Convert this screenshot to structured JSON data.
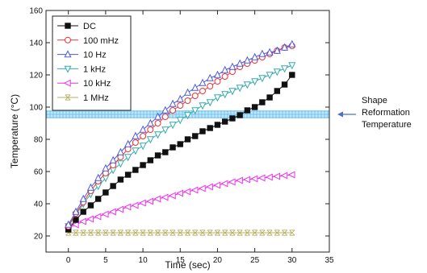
{
  "chart_data": {
    "type": "line",
    "xlabel": "Time (sec)",
    "ylabel": "Temperature (°C)",
    "xlim": [
      -3,
      35
    ],
    "ylim": [
      10,
      160
    ],
    "xticks": [
      0,
      5,
      10,
      15,
      20,
      25,
      30,
      35
    ],
    "yticks": [
      20,
      40,
      60,
      80,
      100,
      120,
      140,
      160
    ],
    "x": [
      0,
      1,
      2,
      3,
      4,
      5,
      6,
      7,
      8,
      9,
      10,
      11,
      12,
      13,
      14,
      15,
      16,
      17,
      18,
      19,
      20,
      21,
      22,
      23,
      24,
      25,
      26,
      27,
      28,
      29,
      30
    ],
    "legend_position": "top-left",
    "grid": false,
    "series": [
      {
        "name": "DC",
        "marker": "square-filled",
        "color": "#111111",
        "values": [
          24,
          30,
          35,
          39,
          43,
          47,
          51,
          55,
          58,
          61,
          64,
          67,
          70,
          72,
          75,
          77,
          80,
          82,
          85,
          87,
          89,
          91,
          93,
          95,
          98,
          100,
          103,
          106,
          110,
          114,
          120
        ]
      },
      {
        "name": "100 mHz",
        "marker": "circle-open",
        "color": "#ee3333",
        "values": [
          26,
          34,
          41,
          48,
          54,
          59,
          64,
          69,
          74,
          78,
          82,
          86,
          90,
          94,
          98,
          101,
          104,
          107,
          110,
          113,
          116,
          119,
          122,
          125,
          127,
          129,
          131,
          133,
          135,
          137,
          138
        ]
      },
      {
        "name": "10 Hz",
        "marker": "triangle-up-open",
        "color": "#4a5ae0",
        "values": [
          27,
          35,
          43,
          50,
          56,
          62,
          67,
          72,
          77,
          82,
          86,
          90,
          94,
          98,
          102,
          105,
          109,
          112,
          115,
          118,
          120,
          123,
          125,
          127,
          129,
          131,
          133,
          134,
          135,
          137,
          139
        ]
      },
      {
        "name": "1 kHz",
        "marker": "triangle-down-open",
        "color": "#33aaaa",
        "values": [
          26,
          33,
          40,
          46,
          51,
          56,
          61,
          65,
          69,
          73,
          76,
          80,
          83,
          86,
          89,
          92,
          95,
          98,
          101,
          103,
          106,
          108,
          110,
          112,
          114,
          116,
          118,
          120,
          122,
          124,
          126
        ]
      },
      {
        "name": "10 kHz",
        "marker": "triangle-left-open",
        "color": "#ee33ee",
        "values": [
          25,
          27,
          29,
          30.5,
          32,
          33.5,
          35,
          36.5,
          38,
          39,
          40.5,
          41.5,
          43,
          44,
          45,
          46.5,
          47.5,
          48.5,
          49.5,
          50.5,
          51.5,
          52.5,
          53.5,
          54.5,
          55,
          55.5,
          56,
          56.5,
          57,
          57.5,
          58
        ]
      },
      {
        "name": "1 MHz",
        "marker": "x-open",
        "color": "#b5b060",
        "values": [
          22,
          22,
          22,
          22,
          22,
          22,
          22,
          22,
          22,
          22,
          22,
          22,
          22,
          22,
          22,
          22,
          22,
          22,
          22,
          22,
          22,
          22,
          22,
          22,
          22,
          22,
          22,
          22,
          22,
          22,
          22
        ]
      }
    ],
    "band": {
      "y_min": 93,
      "y_max": 98,
      "color": "#5ab8f0"
    },
    "annotation": {
      "lines": [
        "Shape",
        "Reformation",
        "Temperature"
      ],
      "arrow_color": "#4a72c8"
    }
  }
}
